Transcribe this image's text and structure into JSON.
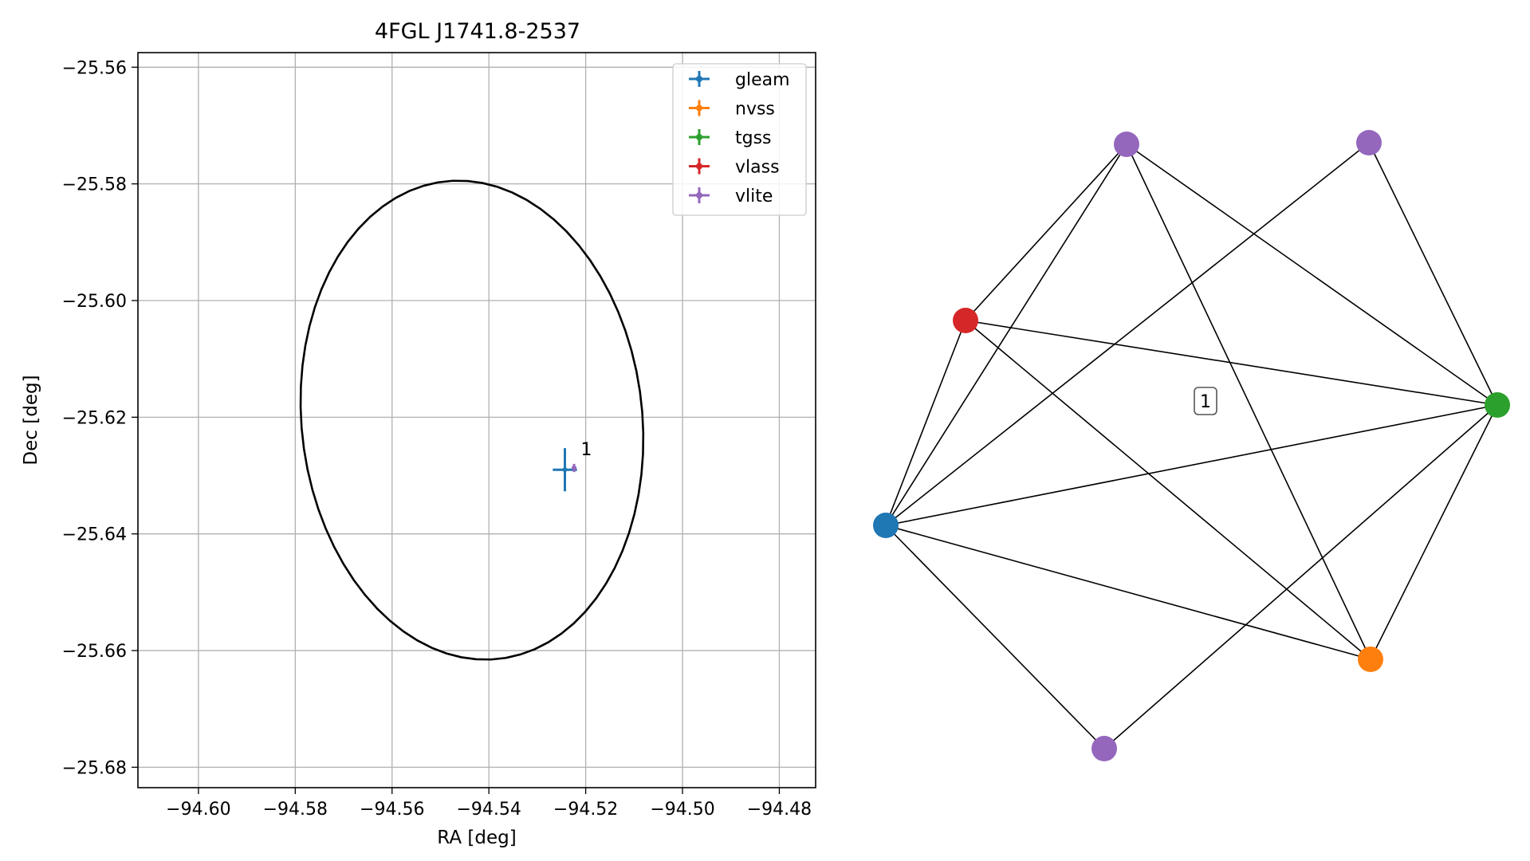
{
  "chart_data": [
    {
      "type": "scatter",
      "title": "4FGL J1741.8-2537",
      "xlabel": "RA [deg]",
      "ylabel": "Dec [deg]",
      "xlim": [
        -94.6125,
        -94.4725
      ],
      "ylim": [
        -25.6835,
        -25.5575
      ],
      "x_ticks": [
        -94.6,
        -94.58,
        -94.56,
        -94.54,
        -94.52,
        -94.5,
        -94.48
      ],
      "x_tick_labels": [
        "−94.60",
        "−94.58",
        "−94.56",
        "−94.54",
        "−94.52",
        "−94.50",
        "−94.48"
      ],
      "y_ticks": [
        -25.56,
        -25.58,
        -25.6,
        -25.62,
        -25.64,
        -25.66,
        -25.68
      ],
      "y_tick_labels": [
        "−25.56",
        "−25.58",
        "−25.60",
        "−25.62",
        "−25.64",
        "−25.66",
        "−25.68"
      ],
      "grid": true,
      "legend_position": "top-right",
      "series": [
        {
          "name": "gleam",
          "color": "#1f77b4",
          "points": [
            {
              "x": -94.5243,
              "y": -25.629,
              "xerr": 0.0025,
              "yerr": 0.0037
            }
          ]
        },
        {
          "name": "nvss",
          "color": "#ff7f0e",
          "points": []
        },
        {
          "name": "tgss",
          "color": "#2ca02c",
          "points": []
        },
        {
          "name": "vlass",
          "color": "#d62728",
          "points": []
        },
        {
          "name": "vlite",
          "color": "#9467bd",
          "points": [
            {
              "x": -94.5224,
              "y": -25.6287,
              "xerr": 0.0005,
              "yerr": 0.0007
            }
          ]
        }
      ],
      "ellipse": {
        "center_x": -94.5435,
        "center_y": -25.6205,
        "semi_major": 0.0414,
        "semi_minor": 0.035,
        "angle_deg": 104,
        "color": "#000000"
      },
      "annotations": [
        {
          "text": "1",
          "x": -94.521,
          "y": -25.6265
        }
      ]
    },
    {
      "type": "network",
      "label": "1",
      "nodes": [
        {
          "id": "vlite_a",
          "color": "#9467bd"
        },
        {
          "id": "vlite_b",
          "color": "#9467bd"
        },
        {
          "id": "vlass",
          "color": "#d62728"
        },
        {
          "id": "tgss",
          "color": "#2ca02c"
        },
        {
          "id": "gleam",
          "color": "#1f77b4"
        },
        {
          "id": "nvss",
          "color": "#ff7f0e"
        },
        {
          "id": "vlite_c",
          "color": "#9467bd"
        }
      ],
      "edges": [
        [
          "vlite_a",
          "vlass"
        ],
        [
          "vlite_a",
          "gleam"
        ],
        [
          "vlite_a",
          "tgss"
        ],
        [
          "vlite_a",
          "nvss"
        ],
        [
          "vlite_b",
          "gleam"
        ],
        [
          "vlite_b",
          "tgss"
        ],
        [
          "vlass",
          "gleam"
        ],
        [
          "vlass",
          "tgss"
        ],
        [
          "vlass",
          "nvss"
        ],
        [
          "gleam",
          "tgss"
        ],
        [
          "gleam",
          "nvss"
        ],
        [
          "gleam",
          "vlite_c"
        ],
        [
          "tgss",
          "nvss"
        ],
        [
          "tgss",
          "vlite_c"
        ]
      ]
    }
  ]
}
